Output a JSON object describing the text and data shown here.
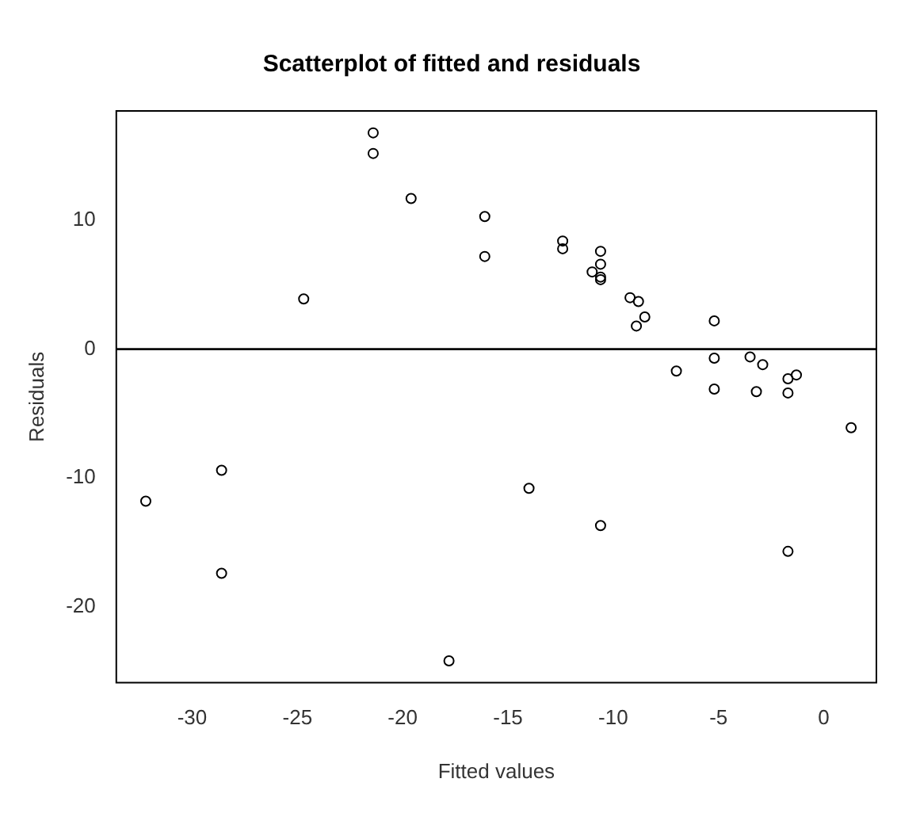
{
  "chart_data": {
    "type": "scatter",
    "title": "Scatterplot of fitted and residuals",
    "xlabel": "Fitted values",
    "ylabel": "Residuals",
    "x": [
      -21.4,
      -21.4,
      -19.6,
      -16.1,
      -16.1,
      -24.7,
      -28.6,
      -32.2,
      -28.6,
      -17.8,
      -12.4,
      -12.4,
      -10.6,
      -10.6,
      -11.0,
      -10.6,
      -10.6,
      -9.2,
      -8.8,
      -8.5,
      -8.9,
      -5.2,
      -5.2,
      -7.0,
      -5.2,
      -3.5,
      -2.9,
      -3.2,
      -1.7,
      -1.3,
      -1.7,
      1.3,
      -14.0,
      -10.6,
      -1.7
    ],
    "series": [
      {
        "color": "#000000",
        "values": [
          16.8,
          15.2,
          11.7,
          10.3,
          7.2,
          3.9,
          -9.4,
          -11.8,
          -17.4,
          -24.2,
          8.4,
          7.8,
          7.6,
          6.6,
          6.0,
          5.6,
          5.4,
          4.0,
          3.7,
          2.5,
          1.8,
          2.2,
          -0.7,
          -1.7,
          -3.1,
          -0.6,
          -1.2,
          -3.3,
          -2.3,
          -2.0,
          -3.4,
          -6.1,
          -10.8,
          -13.7,
          -15.7
        ]
      }
    ],
    "xlim": [
      -33.6,
      2.5
    ],
    "ylim": [
      -25.9,
      18.5
    ],
    "xticks": [
      -30,
      -25,
      -20,
      -15,
      -10,
      -5,
      0
    ],
    "yticks": [
      -20,
      -10,
      0,
      10
    ],
    "ref_lines": [
      {
        "axis": "y",
        "value": 0,
        "color": "#000000"
      }
    ],
    "marker": "circle",
    "grid": false,
    "legend": false
  }
}
